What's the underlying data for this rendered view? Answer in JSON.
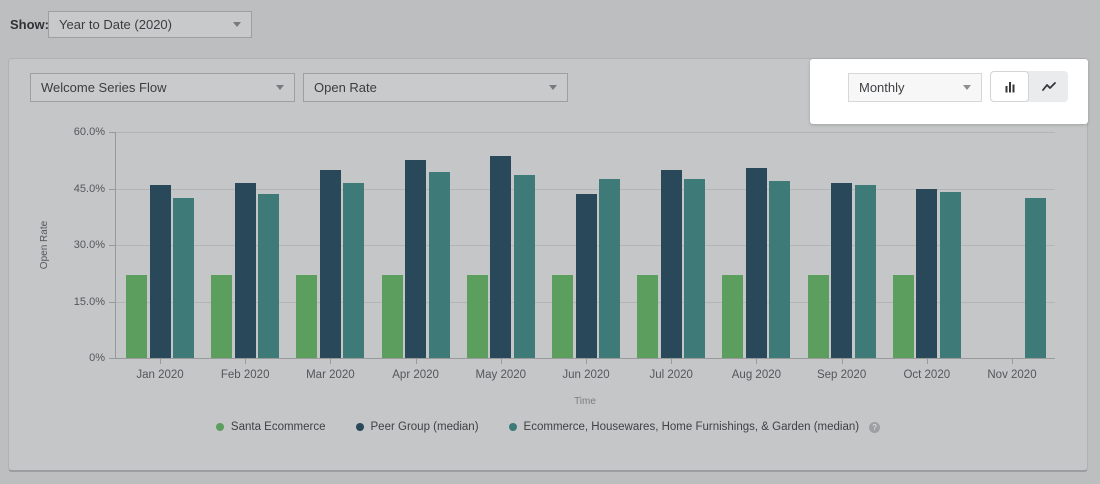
{
  "toolbar": {
    "show_label": "Show:",
    "show_value": "Year to Date (2020)"
  },
  "controls": {
    "flow_value": "Welcome Series Flow",
    "metric_value": "Open Rate",
    "interval_value": "Monthly",
    "chart_type_selected": "bar",
    "chart_type_options": [
      "bar",
      "line"
    ]
  },
  "icons": {
    "help_glyph": "?"
  },
  "colors": {
    "highlight_background": "#ffffff",
    "page_dim_background": "#bdbebf",
    "series_green": "#5b9e5e",
    "series_dark_navy": "#29485a",
    "series_teal": "#3d7a78"
  },
  "chart_data": {
    "type": "bar",
    "title": "",
    "xlabel": "Time",
    "ylabel": "Open Rate",
    "ylim": [
      0,
      60
    ],
    "grid": true,
    "legend_position": "bottom",
    "ytick_labels": [
      "60.0%",
      "45.0%",
      "30.0%",
      "15.0%",
      "0%"
    ],
    "ytick_values": [
      60,
      45,
      30,
      15,
      0
    ],
    "categories": [
      "Jan 2020",
      "Feb 2020",
      "Mar 2020",
      "Apr 2020",
      "May 2020",
      "Jun 2020",
      "Jul 2020",
      "Aug 2020",
      "Sep 2020",
      "Oct 2020",
      "Nov 2020"
    ],
    "series": [
      {
        "name": "Santa Ecommerce",
        "color": "#5b9e5e",
        "values": [
          22,
          22,
          22,
          22,
          22,
          22,
          22,
          22,
          22,
          22,
          null
        ]
      },
      {
        "name": "Peer Group (median)",
        "color": "#29485a",
        "values": [
          46,
          46.5,
          50,
          52.5,
          53.5,
          43.5,
          50,
          50.5,
          46.5,
          45,
          null
        ]
      },
      {
        "name": "Ecommerce, Housewares, Home Furnishings, & Garden (median)",
        "color": "#3d7a78",
        "values": [
          42.5,
          43.5,
          46.5,
          49.5,
          48.5,
          47.5,
          47.5,
          47,
          46,
          44,
          42.5
        ],
        "help_icon": true
      }
    ]
  }
}
